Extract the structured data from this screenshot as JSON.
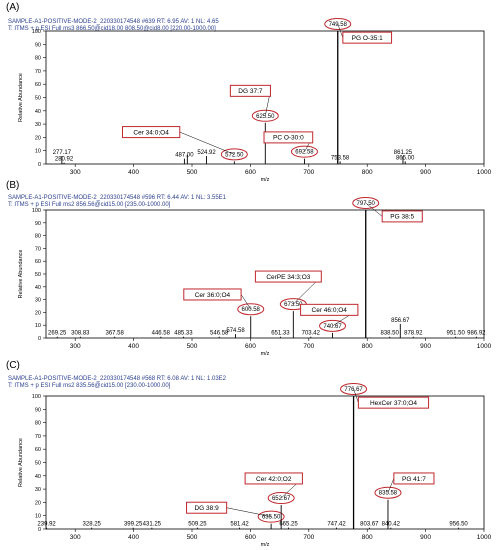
{
  "colors": {
    "frame": "#000000",
    "header_text": "#2b3f8f",
    "highlight": "#c0272d",
    "peak": "#000000"
  },
  "chart_data": [
    {
      "type": "bar",
      "panel_label": "(A)",
      "header_line1": "SAMPLE-A1-POSITIVE-MODE-2_220330174548 #639   RT: 6.95   AV: 1   NL: 4.65",
      "header_line2": "T: ITMS + p ESI Full ms3 866.50@cid18.00 808.50@cid8.00 [220.00-1000.00]",
      "xlabel": "m/z",
      "ylabel": "Relative Abundance",
      "xlim": [
        250,
        1000
      ],
      "ylim": [
        0,
        100
      ],
      "xticks": [
        300,
        400,
        500,
        600,
        700,
        800,
        900,
        1000
      ],
      "yticks": [
        0,
        10,
        20,
        30,
        40,
        50,
        60,
        70,
        80,
        90,
        100
      ],
      "peaks": [
        {
          "mz": 277.17,
          "label": "277.17",
          "value": 6
        },
        {
          "mz": 280.92,
          "label": "280.92",
          "value": 1
        },
        {
          "mz": 487.0,
          "label": "487.00",
          "value": 4
        },
        {
          "mz": 492.0,
          "label": "",
          "value": 7
        },
        {
          "mz": 524.92,
          "label": "524.92",
          "value": 6
        },
        {
          "mz": 572.5,
          "label": "572.50",
          "value": 2
        },
        {
          "mz": 625.5,
          "label": "625.50",
          "value": 31
        },
        {
          "mz": 692.58,
          "label": "692.58",
          "value": 4
        },
        {
          "mz": 749.58,
          "label": "749.58",
          "value": 100
        },
        {
          "mz": 753.58,
          "label": "753.58",
          "value": 2
        },
        {
          "mz": 861.25,
          "label": "861.25",
          "value": 6
        },
        {
          "mz": 865.0,
          "label": "865.00",
          "value": 2
        }
      ],
      "circled": [
        "572.50",
        "625.50",
        "692.58",
        "749.58"
      ],
      "annotations": [
        {
          "text": "PG O-35:1",
          "peak": "749.58",
          "x_mz": 800,
          "y_value": 95
        },
        {
          "text": "DG 37:7",
          "peak": "625.50",
          "x_mz": 600,
          "y_value": 55
        },
        {
          "text": "Cer 34:0;O4",
          "peak": "572.50",
          "x_mz": 430,
          "y_value": 24
        },
        {
          "text": "PC O-30:0",
          "peak": "692.58",
          "x_mz": 665,
          "y_value": 20
        }
      ]
    },
    {
      "type": "bar",
      "panel_label": "(B)",
      "header_line1": "SAMPLE-A1-POSITIVE-MODE-2_220330174548 #596   RT: 6.44   AV: 1   NL: 3.55E1",
      "header_line2": "T: ITMS + p ESI Full ms2 856.56@cid15.00 [235.00-1000.00]",
      "xlabel": "m/z",
      "ylabel": "Relative Abundance",
      "xlim": [
        250,
        1000
      ],
      "ylim": [
        0,
        100
      ],
      "xticks": [
        300,
        400,
        500,
        600,
        700,
        800,
        900,
        1000
      ],
      "yticks": [
        0,
        10,
        20,
        30,
        40,
        50,
        60,
        70,
        80,
        90,
        100
      ],
      "peaks": [
        {
          "mz": 269.25,
          "label": "269.25",
          "value": 1
        },
        {
          "mz": 308.83,
          "label": "308.83",
          "value": 1
        },
        {
          "mz": 367.58,
          "label": "367.58",
          "value": 1
        },
        {
          "mz": 446.58,
          "label": "446.58",
          "value": 1
        },
        {
          "mz": 485.33,
          "label": "485.33",
          "value": 1
        },
        {
          "mz": 546.58,
          "label": "546.58",
          "value": 1
        },
        {
          "mz": 574.58,
          "label": "574.58",
          "value": 3
        },
        {
          "mz": 600.58,
          "label": "600.58",
          "value": 17
        },
        {
          "mz": 651.33,
          "label": "651.33",
          "value": 1
        },
        {
          "mz": 673.5,
          "label": "673.50",
          "value": 21
        },
        {
          "mz": 703.42,
          "label": "703.42",
          "value": 1
        },
        {
          "mz": 740.67,
          "label": "740.67",
          "value": 4
        },
        {
          "mz": 797.5,
          "label": "797.50",
          "value": 100
        },
        {
          "mz": 838.5,
          "label": "838.50",
          "value": 1
        },
        {
          "mz": 856.67,
          "label": "856.67",
          "value": 11
        },
        {
          "mz": 878.92,
          "label": "878.92",
          "value": 1
        },
        {
          "mz": 951.5,
          "label": "951.50",
          "value": 1
        },
        {
          "mz": 986.92,
          "label": "986.92",
          "value": 1
        }
      ],
      "circled": [
        "600.58",
        "673.50",
        "740.67",
        "797.50"
      ],
      "annotations": [
        {
          "text": "PG 38:5",
          "peak": "797.50",
          "x_mz": 860,
          "y_value": 95
        },
        {
          "text": "CerPE 34:3;O3",
          "peak": "673.50",
          "x_mz": 665,
          "y_value": 48
        },
        {
          "text": "Cer 36:0;O4",
          "peak": "600.58",
          "x_mz": 535,
          "y_value": 34
        },
        {
          "text": "Cer 46:0;O4",
          "peak": "740.67",
          "x_mz": 735,
          "y_value": 22
        }
      ]
    },
    {
      "type": "bar",
      "panel_label": "(C)",
      "header_line1": "SAMPLE-A1-POSITIVE-MODE-2_220330174548 #568   RT: 6.08   AV: 1   NL: 1.03E2",
      "header_line2": "T: ITMS + p ESI Full ms2 835.56@cid15.00 [230.00-1000.00]",
      "xlabel": "m/z",
      "ylabel": "Relative Abundance",
      "xlim": [
        250,
        1000
      ],
      "ylim": [
        0,
        100
      ],
      "xticks": [
        300,
        400,
        500,
        600,
        700,
        800,
        900,
        1000
      ],
      "yticks": [
        0,
        10,
        20,
        30,
        40,
        50,
        60,
        70,
        80,
        90,
        100
      ],
      "peaks": [
        {
          "mz": 239.92,
          "label": "239.92",
          "value": 1
        },
        {
          "mz": 328.25,
          "label": "328.25",
          "value": 1
        },
        {
          "mz": 399.25,
          "label": "399.25",
          "value": 1
        },
        {
          "mz": 431.25,
          "label": "431.25",
          "value": 1
        },
        {
          "mz": 509.25,
          "label": "509.25",
          "value": 1
        },
        {
          "mz": 581.42,
          "label": "581.42",
          "value": 1
        },
        {
          "mz": 635.5,
          "label": "635.50",
          "value": 4
        },
        {
          "mz": 652.67,
          "label": "652.67",
          "value": 18
        },
        {
          "mz": 665.25,
          "label": "665.25",
          "value": 1
        },
        {
          "mz": 747.42,
          "label": "747.42",
          "value": 1
        },
        {
          "mz": 776.67,
          "label": "776.67",
          "value": 100
        },
        {
          "mz": 803.67,
          "label": "803.67",
          "value": 1
        },
        {
          "mz": 835.58,
          "label": "835.58",
          "value": 22
        },
        {
          "mz": 840.42,
          "label": "840.42",
          "value": 1
        },
        {
          "mz": 956.5,
          "label": "956.50",
          "value": 1
        }
      ],
      "circled": [
        "635.50",
        "652.67",
        "776.67",
        "835.58"
      ],
      "annotations": [
        {
          "text": "HexCer 37:0;O4",
          "peak": "776.67",
          "x_mz": 845,
          "y_value": 95
        },
        {
          "text": "PG 41:7",
          "peak": "835.58",
          "x_mz": 880,
          "y_value": 38
        },
        {
          "text": "Cer 42:0;O2",
          "peak": "652.67",
          "x_mz": 640,
          "y_value": 38
        },
        {
          "text": "DG 38:9",
          "peak": "635.50",
          "x_mz": 525,
          "y_value": 16
        }
      ]
    }
  ]
}
